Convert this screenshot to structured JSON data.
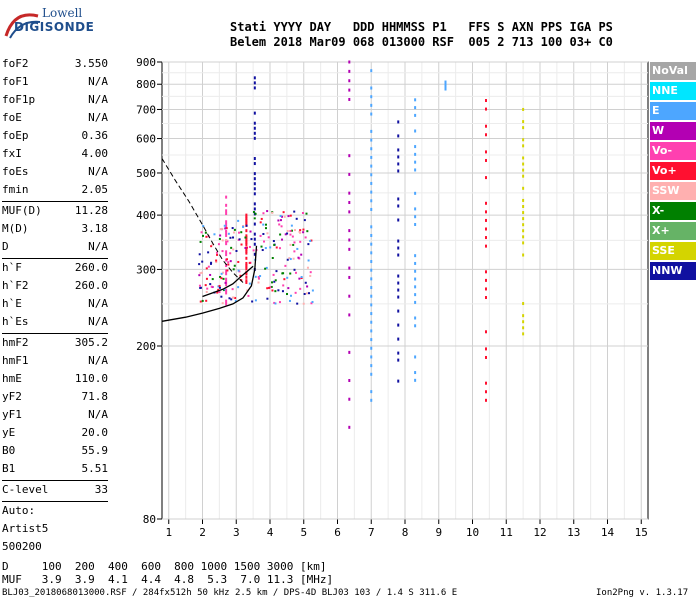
{
  "logo": {
    "line1": "Lowell",
    "line2": "DIGISONDE"
  },
  "header": {
    "line1": "Stati YYYY DAY   DDD HHMMSS P1   FFS S AXN PPS IGA PS",
    "line2": "Belem 2018 Mar09 068 013000 RSF  005 2 713 100 03+ C0"
  },
  "params_group1": [
    {
      "name": "foF2",
      "value": "3.550"
    },
    {
      "name": "foF1",
      "value": "N/A"
    },
    {
      "name": "foF1p",
      "value": "N/A"
    },
    {
      "name": "foE",
      "value": "N/A"
    },
    {
      "name": "foEp",
      "value": "0.36"
    },
    {
      "name": "fxI",
      "value": "4.00"
    },
    {
      "name": "foEs",
      "value": "N/A"
    },
    {
      "name": "fmin",
      "value": "2.05"
    }
  ],
  "params_group2": [
    {
      "name": "MUF(D)",
      "value": "11.28"
    },
    {
      "name": "M(D)",
      "value": "3.18"
    },
    {
      "name": "D",
      "value": "N/A"
    }
  ],
  "params_group3": [
    {
      "name": "h`F",
      "value": "260.0"
    },
    {
      "name": "h`F2",
      "value": "260.0"
    },
    {
      "name": "h`E",
      "value": "N/A"
    },
    {
      "name": "h`Es",
      "value": "N/A"
    }
  ],
  "params_group4": [
    {
      "name": "hmF2",
      "value": "305.2"
    },
    {
      "name": "hmF1",
      "value": "N/A"
    },
    {
      "name": "hmE",
      "value": "110.0"
    },
    {
      "name": "yF2",
      "value": "71.8"
    },
    {
      "name": "yF1",
      "value": "N/A"
    },
    {
      "name": "yE",
      "value": "20.0"
    },
    {
      "name": "B0",
      "value": "55.9"
    },
    {
      "name": "B1",
      "value": "5.51"
    }
  ],
  "clevel": {
    "name": "C-level",
    "value": "33"
  },
  "auto": {
    "line1": "Auto:",
    "line2": "Artist5",
    "line3": "500200"
  },
  "footer": {
    "d_row": "D     100  200  400  600  800 1000 1500 3000 [km]",
    "muf_row": "MUF   3.9  3.9  4.1  4.4  4.8  5.3  7.0 11.3 [MHz]",
    "file_info": "BLJ03_2018068013000.RSF / 284fx512h 50 kHz 2.5 km / DPS-4D BLJ03 103 / 1.4 S 311.6 E",
    "version": "Ion2Png v. 1.3.17"
  },
  "legend": [
    {
      "label": "NoVal",
      "color": "#a6a6a6"
    },
    {
      "label": "NNE",
      "color": "#00e6ff"
    },
    {
      "label": "E",
      "color": "#4da6ff"
    },
    {
      "label": "W",
      "color": "#b300b3"
    },
    {
      "label": "Vo-",
      "color": "#ff40b0"
    },
    {
      "label": "Vo+",
      "color": "#ff1030"
    },
    {
      "label": "SSW",
      "color": "#ffb0b0"
    },
    {
      "label": "X-",
      "color": "#008000"
    },
    {
      "label": "X+",
      "color": "#66b366"
    },
    {
      "label": "SSE",
      "color": "#d4d400"
    },
    {
      "label": "NNW",
      "color": "#1010a0"
    }
  ],
  "chart_data": {
    "type": "scatter",
    "title": "",
    "xlabel": "",
    "ylabel": "",
    "xlim": [
      0.8,
      15.2
    ],
    "ylim": [
      80,
      900
    ],
    "y_scale": "log",
    "grid": true,
    "x_ticks": [
      1,
      2,
      3,
      4,
      5,
      6,
      7,
      8,
      9,
      10,
      11,
      12,
      13,
      14,
      15
    ],
    "y_ticks": [
      80,
      200,
      300,
      400,
      500,
      600,
      700,
      800,
      900
    ],
    "profile_curve": [
      [
        2.0,
        260
      ],
      [
        2.3,
        265
      ],
      [
        2.6,
        270
      ],
      [
        2.9,
        278
      ],
      [
        3.1,
        287
      ],
      [
        3.3,
        296
      ],
      [
        3.5,
        305
      ]
    ],
    "ordinary_trace_solid": [
      [
        0.8,
        228
      ],
      [
        1.5,
        233
      ],
      [
        2.0,
        238
      ],
      [
        2.5,
        244
      ],
      [
        2.9,
        250
      ],
      [
        3.2,
        258
      ],
      [
        3.45,
        275
      ],
      [
        3.55,
        300
      ],
      [
        3.6,
        340
      ]
    ],
    "mirror_curve_dashed": [
      [
        0.8,
        540
      ],
      [
        1.2,
        480
      ],
      [
        1.6,
        430
      ],
      [
        2.0,
        380
      ],
      [
        2.3,
        345
      ],
      [
        2.6,
        315
      ],
      [
        2.9,
        295
      ],
      [
        3.2,
        280
      ]
    ],
    "echo_traces": [
      {
        "mode": "Vo-",
        "x": 2.7,
        "y_range": [
          250,
          440
        ]
      },
      {
        "mode": "Vo+",
        "x": 3.3,
        "y_range": [
          280,
          400
        ]
      },
      {
        "mode": "NNW",
        "x": 3.55,
        "y_range": [
          300,
          850
        ]
      },
      {
        "mode": "W",
        "x": 6.35,
        "y_range": [
          130,
          900
        ]
      },
      {
        "mode": "E",
        "x": 7.0,
        "y_range": [
          150,
          900
        ]
      },
      {
        "mode": "NNW",
        "x": 7.8,
        "y_range": [
          160,
          680
        ]
      },
      {
        "mode": "E",
        "x": 8.3,
        "y_range": [
          160,
          800
        ]
      },
      {
        "mode": "E",
        "x": 9.2,
        "y_range": [
          780,
          810
        ]
      },
      {
        "mode": "Vo+",
        "x": 10.4,
        "y_range": [
          150,
          880
        ]
      },
      {
        "mode": "SSE",
        "x": 11.5,
        "y_range": [
          200,
          700
        ]
      }
    ]
  }
}
